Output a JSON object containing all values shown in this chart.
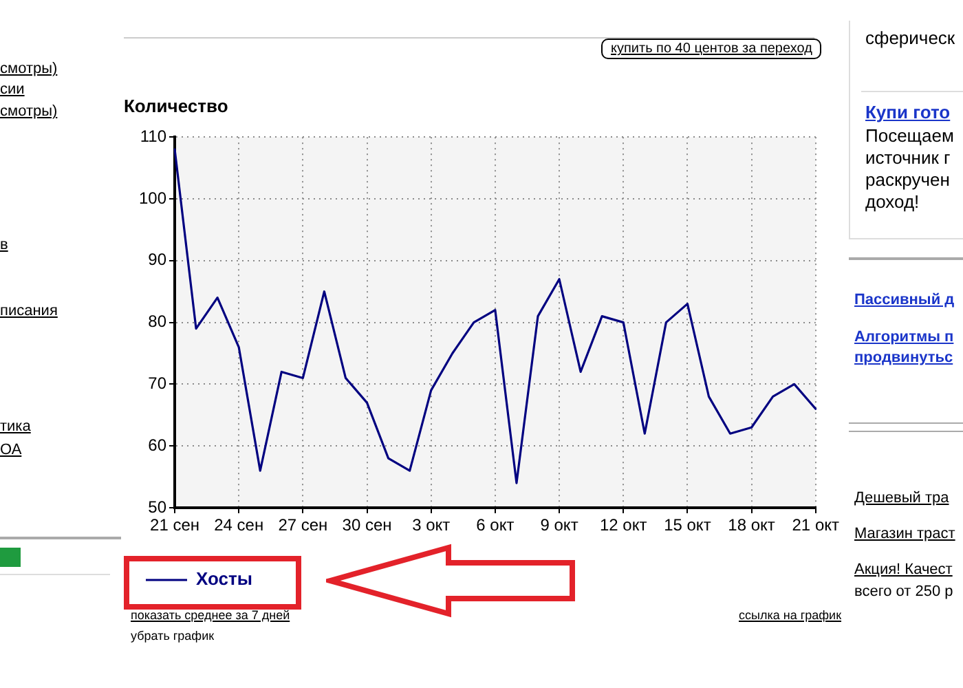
{
  "chart_data": {
    "type": "line",
    "title": "Количество",
    "categories": [
      "21 сен",
      null,
      null,
      "24 сен",
      null,
      null,
      "27 сен",
      null,
      null,
      "30 сен",
      null,
      null,
      "3 окт",
      null,
      null,
      "6 окт",
      null,
      null,
      "9 окт",
      null,
      null,
      "12 окт",
      null,
      null,
      "15 окт",
      null,
      null,
      "18 окт",
      null,
      null,
      "21 окт"
    ],
    "series": [
      {
        "name": "Хосты",
        "color": "#000080",
        "values": [
          108,
          79,
          84,
          76,
          56,
          72,
          71,
          85,
          71,
          67,
          58,
          56,
          69,
          75,
          80,
          82,
          54,
          81,
          87,
          72,
          81,
          80,
          62,
          80,
          83,
          68,
          62,
          63,
          68,
          70,
          66
        ]
      }
    ],
    "ylim": [
      50,
      110
    ],
    "yticks": [
      50,
      60,
      70,
      80,
      90,
      100,
      110
    ],
    "grid": true,
    "legend": "bottom left",
    "annotations": [
      "купить по 40 центов за переход",
      "показать среднее за 7 дней",
      "убрать график",
      "ссылка на график",
      "смотры)",
      "сии",
      "смотры)",
      "в",
      "писания",
      "тика",
      "ОА",
      "сферическ",
      "Купи гото",
      "Посещаем",
      "источник г",
      "раскручен",
      "доход!",
      "Пассивный д",
      "Алгоритмы п",
      "продвинутьс",
      "Дешевый тра",
      "Магазин траст",
      "Акция! Качест",
      "всего от 250 р"
    ]
  }
}
